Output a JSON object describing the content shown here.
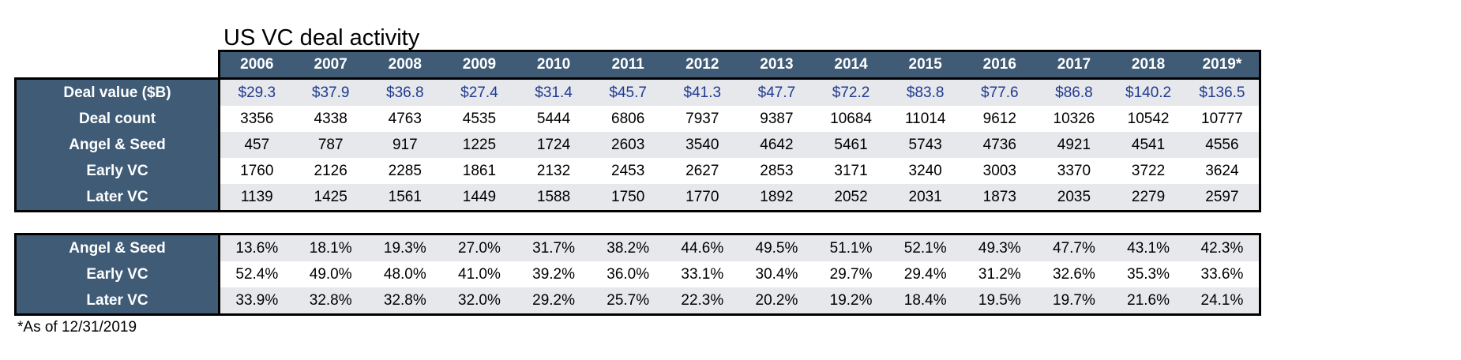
{
  "chart_data": {
    "type": "table",
    "title": "US VC deal activity",
    "years": [
      "2006",
      "2007",
      "2008",
      "2009",
      "2010",
      "2011",
      "2012",
      "2013",
      "2014",
      "2015",
      "2016",
      "2017",
      "2018",
      "2019*"
    ],
    "tables": [
      {
        "rows": [
          {
            "label": "Deal value ($B)",
            "values": [
              "$29.3",
              "$37.9",
              "$36.8",
              "$27.4",
              "$31.4",
              "$45.7",
              "$41.3",
              "$47.7",
              "$72.2",
              "$83.8",
              "$77.6",
              "$86.8",
              "$140.2",
              "$136.5"
            ]
          },
          {
            "label": "Deal count",
            "values": [
              "3356",
              "4338",
              "4763",
              "4535",
              "5444",
              "6806",
              "7937",
              "9387",
              "10684",
              "11014",
              "9612",
              "10326",
              "10542",
              "10777"
            ]
          },
          {
            "label": "Angel & Seed",
            "values": [
              "457",
              "787",
              "917",
              "1225",
              "1724",
              "2603",
              "3540",
              "4642",
              "5461",
              "5743",
              "4736",
              "4921",
              "4541",
              "4556"
            ]
          },
          {
            "label": "Early VC",
            "values": [
              "1760",
              "2126",
              "2285",
              "1861",
              "2132",
              "2453",
              "2627",
              "2853",
              "3171",
              "3240",
              "3003",
              "3370",
              "3722",
              "3624"
            ]
          },
          {
            "label": "Later VC",
            "values": [
              "1139",
              "1425",
              "1561",
              "1449",
              "1588",
              "1750",
              "1770",
              "1892",
              "2052",
              "2031",
              "1873",
              "2035",
              "2279",
              "2597"
            ]
          }
        ]
      },
      {
        "rows": [
          {
            "label": "Angel & Seed",
            "values": [
              "13.6%",
              "18.1%",
              "19.3%",
              "27.0%",
              "31.7%",
              "38.2%",
              "44.6%",
              "49.5%",
              "51.1%",
              "52.1%",
              "49.3%",
              "47.7%",
              "43.1%",
              "42.3%"
            ]
          },
          {
            "label": "Early VC",
            "values": [
              "52.4%",
              "49.0%",
              "48.0%",
              "41.0%",
              "39.2%",
              "36.0%",
              "33.1%",
              "30.4%",
              "29.7%",
              "29.4%",
              "31.2%",
              "32.6%",
              "35.3%",
              "33.6%"
            ]
          },
          {
            "label": "Later VC",
            "values": [
              "33.9%",
              "32.8%",
              "32.8%",
              "32.0%",
              "29.2%",
              "25.7%",
              "22.3%",
              "20.2%",
              "19.2%",
              "18.4%",
              "19.5%",
              "19.7%",
              "21.6%",
              "24.1%"
            ]
          }
        ]
      }
    ],
    "footnote": "*As of 12/31/2019"
  },
  "colors": {
    "header_fill": "#3f5b76",
    "shaded_row": "#e6e8eb",
    "value_text": "#1f3a93",
    "border": "#000000"
  }
}
